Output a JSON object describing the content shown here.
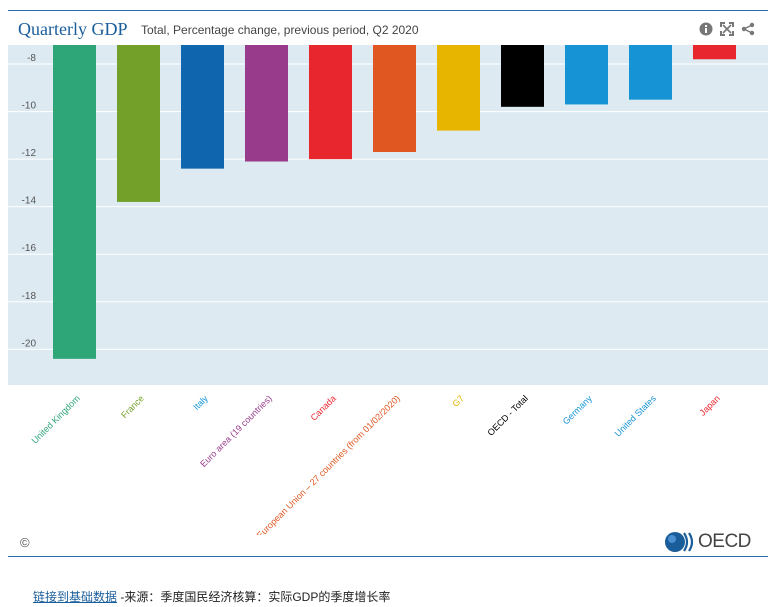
{
  "header": {
    "title": "Quarterly GDP",
    "subtitle": "Total, Percentage change, previous period, Q2 2020",
    "icons": [
      "info-icon",
      "expand-icon",
      "share-icon"
    ]
  },
  "chart_data": {
    "type": "bar",
    "title": "Quarterly GDP",
    "subtitle": "Total, Percentage change, previous period, Q2 2020",
    "categories": [
      "United Kingdom",
      "France",
      "Italy",
      "Euro area (19 countries)",
      "Canada",
      "European Union – 27 countries (from 01/02/2020)",
      "G7",
      "OECD - Total",
      "Germany",
      "United States",
      "Japan"
    ],
    "values": [
      -20.4,
      -13.8,
      -12.4,
      -12.1,
      -12.0,
      -11.7,
      -10.8,
      -9.8,
      -9.7,
      -9.5,
      -7.8
    ],
    "colors": [
      "#2fa678",
      "#72a028",
      "#0f66ae",
      "#983b8a",
      "#e8262e",
      "#e05721",
      "#e7b400",
      "#000000",
      "#1693d5",
      "#1693d5",
      "#e8262e"
    ],
    "label_colors": [
      "#2fa678",
      "#72a028",
      "#1693d5",
      "#983b8a",
      "#e8262e",
      "#e05721",
      "#e7b400",
      "#000000",
      "#1693d5",
      "#1693d5",
      "#e8262e"
    ],
    "ylim": [
      -21.5,
      -7.2
    ],
    "yticks": [
      -8,
      -10,
      -12,
      -14,
      -16,
      -18,
      -20
    ],
    "grid": true,
    "xlabel": "",
    "ylabel": ""
  },
  "footer": {
    "copyright": "©",
    "logo_text": "OECD",
    "link_text": "链接到基础数据",
    "source_text": " -来源：季度国民经济核算：实际GDP的季度增长率"
  }
}
